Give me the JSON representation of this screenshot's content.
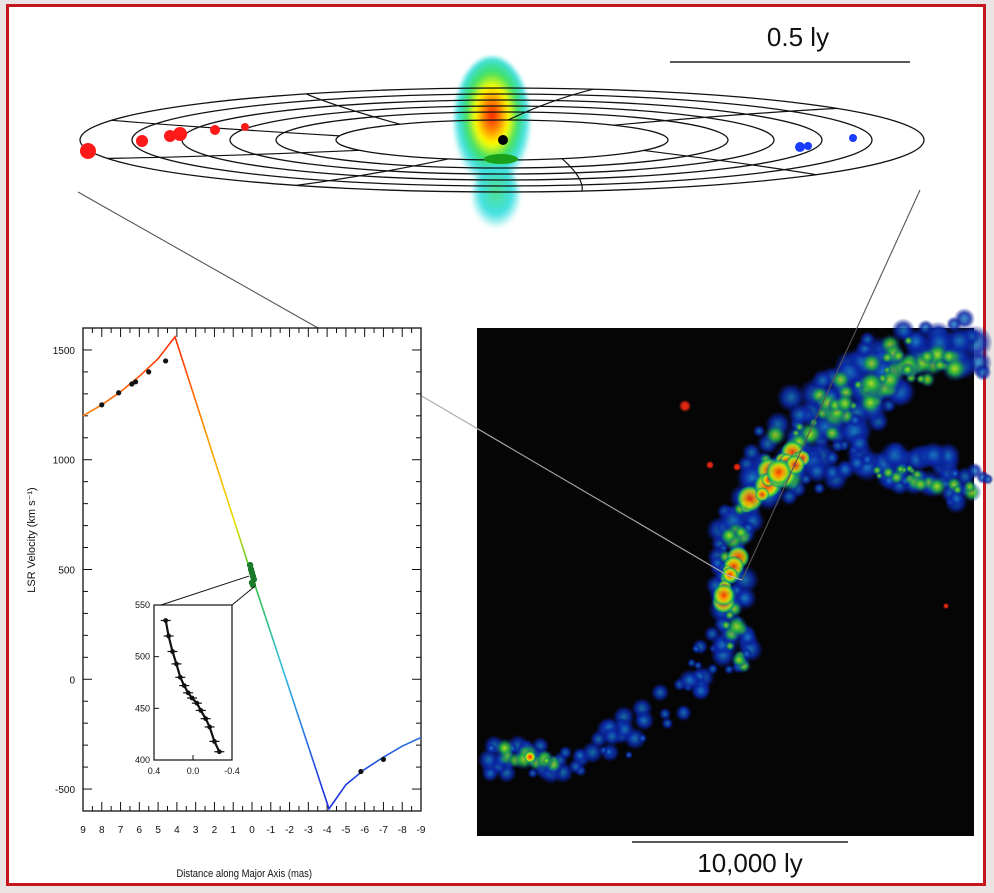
{
  "scale_bars": {
    "top_label": "0.5 ly",
    "bottom_label": "10,000 ly"
  },
  "colors": {
    "frame": "#c4161c",
    "redshifted": "#ff1a1a",
    "blueshifted": "#1a3cff",
    "systemic": "#1aa01a",
    "image_background": "#050505"
  },
  "chart_data": [
    {
      "type": "line",
      "title": "",
      "xlabel": "Distance along Major Axis (mas)",
      "ylabel": "LSR Velocity (km s⁻¹)",
      "xlim": [
        9,
        -9
      ],
      "ylim": [
        -600,
        1600
      ],
      "x_reversed": true,
      "x_ticks": [
        9,
        8,
        7,
        6,
        5,
        4,
        3,
        2,
        1,
        0,
        -1,
        -2,
        -3,
        -4,
        -5,
        -6,
        -7,
        -8,
        -9
      ],
      "y_ticks": [
        -500,
        0,
        500,
        1000,
        1500
      ],
      "series": [
        {
          "name": "",
          "kind": "keplerian-curve",
          "x": [
            9,
            8,
            7,
            6,
            5,
            4.1,
            0,
            -4.1,
            -5,
            -6,
            -7,
            -8,
            -9
          ],
          "y": [
            1200,
            1250,
            1310,
            1380,
            1460,
            1560,
            470,
            -590,
            -480,
            -410,
            -355,
            -305,
            -265
          ]
        },
        {
          "name": "",
          "kind": "redshifted-masers",
          "x": [
            8,
            7.1,
            6.4,
            6.2,
            5.5,
            4.6
          ],
          "y": [
            1250,
            1305,
            1345,
            1355,
            1400,
            1450
          ]
        },
        {
          "name": "",
          "kind": "systemic-masers",
          "x": [
            0.1,
            0.05,
            0.0,
            -0.05,
            -0.1,
            0.0,
            -0.05
          ],
          "y": [
            520,
            500,
            485,
            470,
            455,
            440,
            430
          ]
        },
        {
          "name": "",
          "kind": "blueshifted-masers",
          "x": [
            -5.8,
            -7.0
          ],
          "y": [
            -420,
            -365
          ]
        }
      ]
    },
    {
      "type": "scatter",
      "title": "",
      "inset": true,
      "xlim": [
        0.4,
        -0.4
      ],
      "ylim": [
        400,
        550
      ],
      "x_ticks": [
        0.4,
        0.0,
        -0.4
      ],
      "y_ticks": [
        400,
        450,
        500,
        550
      ],
      "series": [
        {
          "name": "",
          "x": [
            0.28,
            0.25,
            0.21,
            0.17,
            0.13,
            0.09,
            0.05,
            0.01,
            -0.04,
            -0.08,
            -0.13,
            -0.17,
            -0.22,
            -0.27
          ],
          "y": [
            535,
            520,
            505,
            493,
            480,
            472,
            465,
            460,
            455,
            448,
            440,
            432,
            418,
            408
          ]
        }
      ]
    }
  ]
}
